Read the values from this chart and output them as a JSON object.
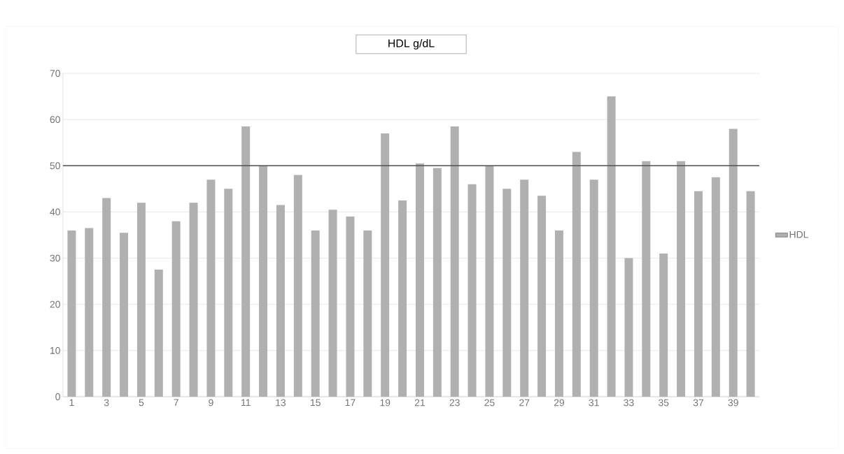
{
  "chart_data": {
    "type": "bar",
    "title": "HDL g/dL",
    "categories": [
      "1",
      null,
      "3",
      null,
      "5",
      null,
      "7",
      null,
      "9",
      null,
      "11",
      null,
      "13",
      null,
      "15",
      null,
      "17",
      null,
      "19",
      null,
      "21",
      null,
      "23",
      null,
      "25",
      null,
      "27",
      null,
      "29",
      null,
      "31",
      null,
      "33",
      null,
      "35",
      null,
      "37",
      null,
      "39",
      null
    ],
    "series": [
      {
        "name": "HDL",
        "color": "#b0b0b0",
        "values": [
          36,
          36.5,
          43,
          35.5,
          42,
          27.5,
          38,
          42,
          47,
          45,
          58.5,
          50,
          41.5,
          48,
          36,
          40.5,
          39,
          36,
          57,
          42.5,
          50.5,
          49.5,
          58.5,
          46,
          50,
          45,
          47,
          43.5,
          36,
          53,
          47,
          65,
          30,
          51,
          31,
          51,
          44.5,
          47.5,
          58,
          44.5
        ]
      }
    ],
    "ylim": [
      0,
      70
    ],
    "yticks": [
      0,
      10,
      20,
      30,
      40,
      50,
      60,
      70
    ],
    "grid": "y",
    "legend": "right",
    "ref_lines": [
      {
        "axis": "y",
        "value": 50,
        "color": "#505050"
      }
    ]
  }
}
